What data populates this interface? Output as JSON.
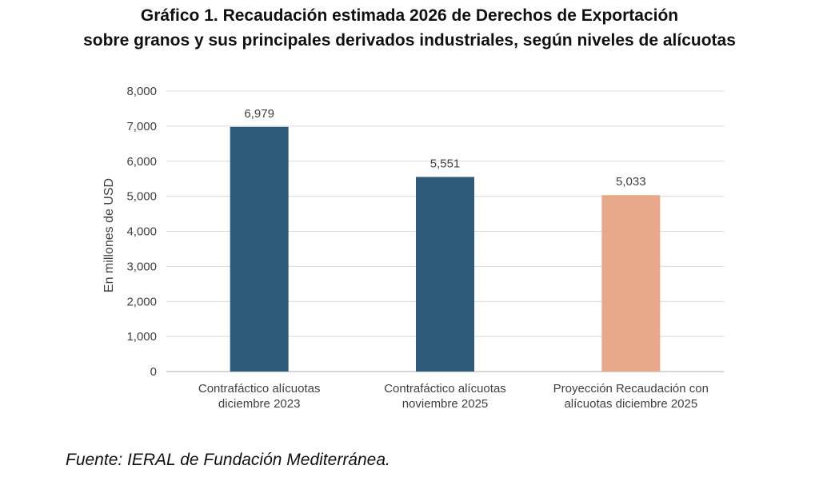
{
  "title": {
    "line1": "Gráfico 1. Recaudación estimada 2026 de Derechos de Exportación",
    "line2": "sobre granos y sus principales derivados industriales, según niveles de alícuotas"
  },
  "source": "Fuente: IERAL de Fundación Mediterránea.",
  "colors": {
    "bar_dark": "#2e5b7b",
    "bar_highlight": "#e8a98a",
    "grid": "#d9d9d9",
    "axis_text": "#404040"
  },
  "chart_data": {
    "type": "bar",
    "title": "Gráfico 1. Recaudación estimada 2026 de Derechos de Exportación sobre granos y sus principales derivados industriales, según niveles de alícuotas",
    "categories": [
      [
        "Contrafáctico alícuotas",
        "diciembre 2023"
      ],
      [
        "Contrafáctico alícuotas",
        "noviembre 2025"
      ],
      [
        "Proyección Recaudación con",
        "alícuotas diciembre 2025"
      ]
    ],
    "values": [
      6979,
      5551,
      5033
    ],
    "data_labels": [
      "6,979",
      "5,551",
      "5,033"
    ],
    "bar_colors": [
      "#2e5b7b",
      "#2e5b7b",
      "#e8a98a"
    ],
    "xlabel": "",
    "ylabel": "En millones de USD",
    "ylim": [
      0,
      8000
    ],
    "yticks": [
      0,
      1000,
      2000,
      3000,
      4000,
      5000,
      6000,
      7000,
      8000
    ],
    "ytick_labels": [
      "0",
      "1,000",
      "2,000",
      "3,000",
      "4,000",
      "5,000",
      "6,000",
      "7,000",
      "8,000"
    ],
    "grid": true,
    "legend": "none"
  }
}
